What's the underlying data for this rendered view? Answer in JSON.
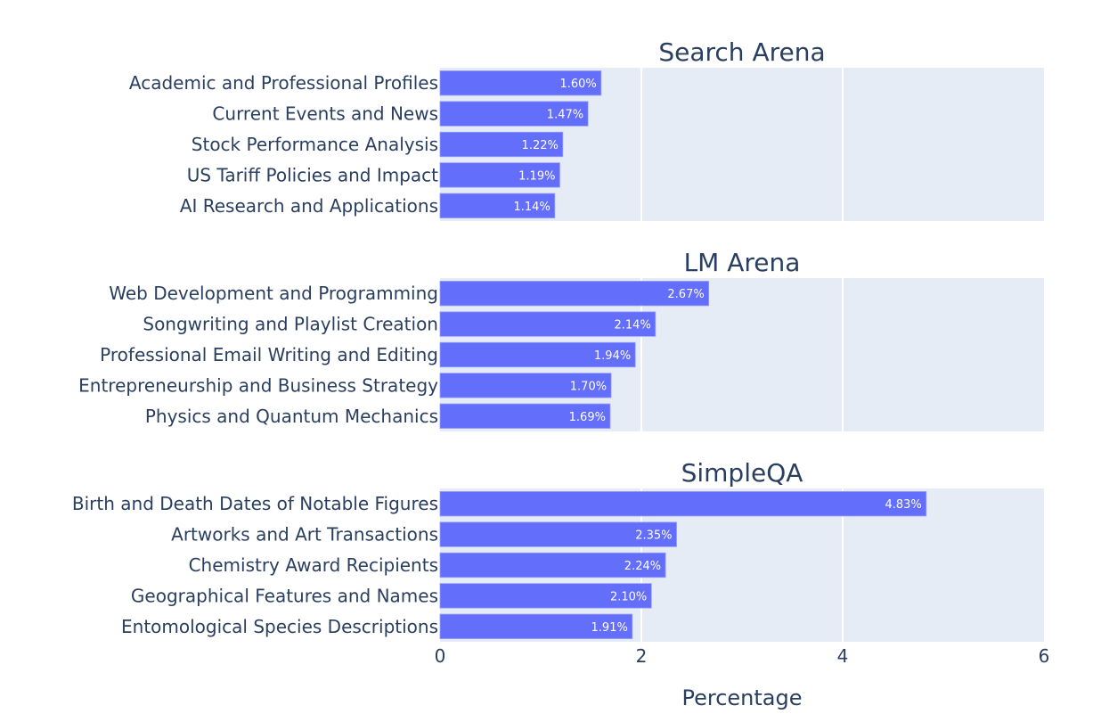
{
  "chart_data": {
    "type": "bar",
    "orientation": "horizontal",
    "xlabel": "Percentage",
    "xlim": [
      0,
      6
    ],
    "xticks": [
      0,
      2,
      4,
      6
    ],
    "grid": true,
    "bar_color": "#636efa",
    "panel_color": "#e5ecf6",
    "text_color": "#2a3f5f",
    "panels": [
      {
        "title": "Search Arena",
        "categories": [
          "Academic and Professional Profiles",
          "Current Events and News",
          "Stock Performance Analysis",
          "US Tariff Policies and Impact",
          "AI Research and Applications"
        ],
        "values": [
          1.6,
          1.47,
          1.22,
          1.19,
          1.14
        ],
        "labels": [
          "1.60%",
          "1.47%",
          "1.22%",
          "1.19%",
          "1.14%"
        ]
      },
      {
        "title": "LM Arena",
        "categories": [
          "Web Development and Programming",
          "Songwriting and Playlist Creation",
          "Professional Email Writing and Editing",
          "Entrepreneurship and Business Strategy",
          "Physics and Quantum Mechanics"
        ],
        "values": [
          2.67,
          2.14,
          1.94,
          1.7,
          1.69
        ],
        "labels": [
          "2.67%",
          "2.14%",
          "1.94%",
          "1.70%",
          "1.69%"
        ]
      },
      {
        "title": "SimpleQA",
        "categories": [
          "Birth and Death Dates of Notable Figures",
          "Artworks and Art Transactions",
          "Chemistry Award Recipients",
          "Geographical Features and Names",
          "Entomological Species Descriptions"
        ],
        "values": [
          4.83,
          2.35,
          2.24,
          2.1,
          1.91
        ],
        "labels": [
          "4.83%",
          "2.35%",
          "2.24%",
          "2.10%",
          "1.91%"
        ]
      }
    ]
  }
}
